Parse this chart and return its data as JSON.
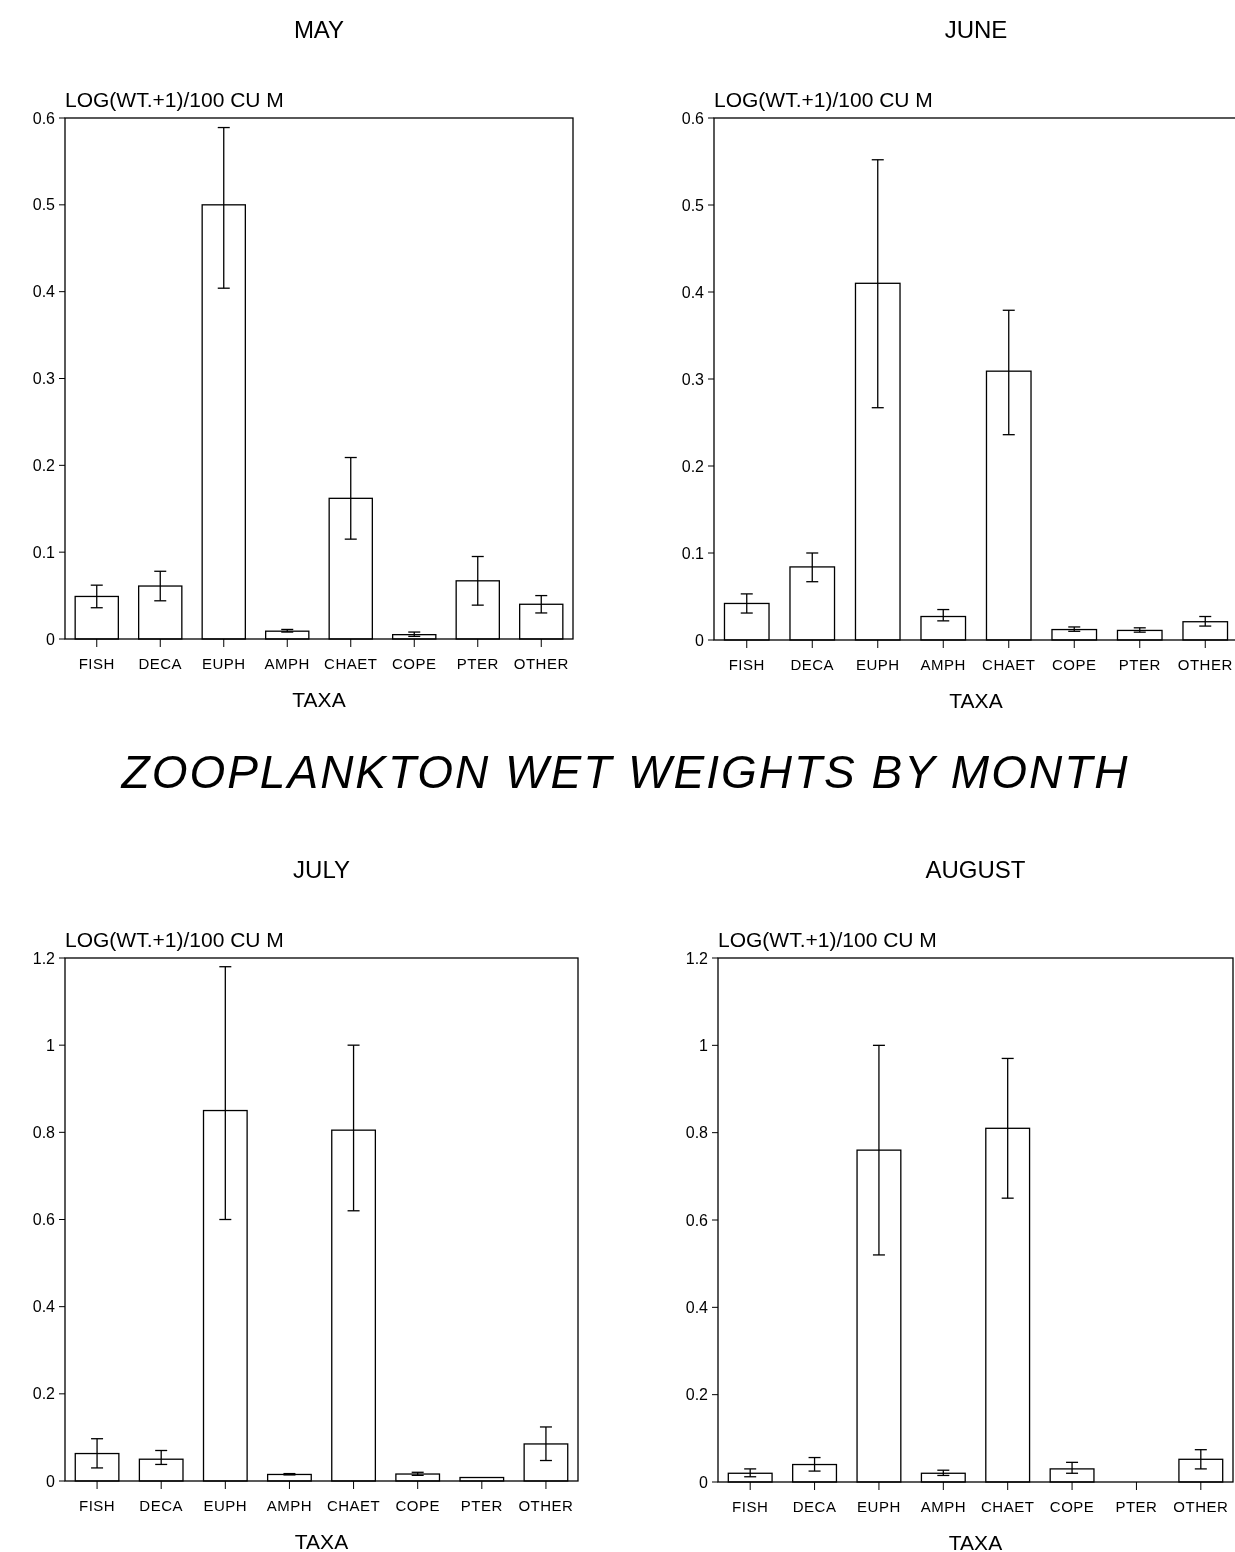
{
  "chart_data": [
    {
      "type": "bar",
      "title": "MAY",
      "ylabel": "LOG(WT.+1)/100 CU M",
      "xlabel": "TAXA",
      "annotations": [
        "ZOOPLANKTON WET WEIGHTS BY MONTH"
      ],
      "categories": [
        "FISH",
        "DECA",
        "EUPH",
        "AMPH",
        "CHAET",
        "COPE",
        "PTER",
        "OTHER"
      ],
      "color": "#ffffff",
      "grid": false,
      "ylim": [
        0,
        0.6
      ],
      "yticks": [
        0,
        0.1,
        0.2,
        0.3,
        0.4,
        0.5,
        0.6
      ],
      "values": [
        0.049,
        0.061,
        0.5,
        0.009,
        0.162,
        0.005,
        0.067,
        0.04
      ],
      "errors": [
        [
          0.036,
          0.062
        ],
        [
          0.044,
          0.078
        ],
        [
          0.404,
          0.589
        ],
        [
          0.008,
          0.011
        ],
        [
          0.115,
          0.209
        ],
        [
          0.003,
          0.008
        ],
        [
          0.039,
          0.095
        ],
        [
          0.03,
          0.05
        ]
      ]
    },
    {
      "type": "bar",
      "title": "JUNE",
      "ylabel": "LOG(WT.+1)/100 CU M",
      "xlabel": "TAXA",
      "categories": [
        "FISH",
        "DECA",
        "EUPH",
        "AMPH",
        "CHAET",
        "COPE",
        "PTER",
        "OTHER"
      ],
      "color": "#ffffff",
      "grid": false,
      "ylim": [
        0,
        0.6
      ],
      "yticks": [
        0,
        0.1,
        0.2,
        0.3,
        0.4,
        0.5,
        0.6
      ],
      "values": [
        0.042,
        0.084,
        0.41,
        0.027,
        0.309,
        0.012,
        0.011,
        0.021
      ],
      "errors": [
        [
          0.031,
          0.053
        ],
        [
          0.067,
          0.1
        ],
        [
          0.267,
          0.552
        ],
        [
          0.022,
          0.035
        ],
        [
          0.236,
          0.379
        ],
        [
          0.01,
          0.015
        ],
        [
          0.009,
          0.014
        ],
        [
          0.016,
          0.027
        ]
      ]
    },
    {
      "type": "bar",
      "title": "JULY",
      "ylabel": "LOG(WT.+1)/100 CU M",
      "xlabel": "TAXA",
      "categories": [
        "FISH",
        "DECA",
        "EUPH",
        "AMPH",
        "CHAET",
        "COPE",
        "PTER",
        "OTHER"
      ],
      "color": "#ffffff",
      "grid": false,
      "ylim": [
        0,
        1.2
      ],
      "yticks": [
        0,
        0.2,
        0.4,
        0.6,
        0.8,
        1,
        1.2
      ],
      "values": [
        0.063,
        0.05,
        0.85,
        0.015,
        0.805,
        0.016,
        0.008,
        0.085
      ],
      "errors": [
        [
          0.03,
          0.097
        ],
        [
          0.038,
          0.07
        ],
        [
          0.6,
          1.18
        ],
        [
          0.014,
          0.017
        ],
        [
          0.62,
          1.0
        ],
        [
          0.013,
          0.02
        ],
        null,
        [
          0.047,
          0.124
        ]
      ]
    },
    {
      "type": "bar",
      "title": "AUGUST",
      "ylabel": "LOG(WT.+1)/100 CU M",
      "xlabel": "TAXA",
      "categories": [
        "FISH",
        "DECA",
        "EUPH",
        "AMPH",
        "CHAET",
        "COPE",
        "PTER",
        "OTHER"
      ],
      "color": "#ffffff",
      "grid": false,
      "ylim": [
        0,
        1.2
      ],
      "yticks": [
        0,
        0.2,
        0.4,
        0.6,
        0.8,
        1,
        1.2
      ],
      "values": [
        0.02,
        0.04,
        0.76,
        0.02,
        0.81,
        0.03,
        0,
        0.052
      ],
      "errors": [
        [
          0.012,
          0.03
        ],
        [
          0.025,
          0.056
        ],
        [
          0.52,
          1.0
        ],
        [
          0.015,
          0.027
        ],
        [
          0.65,
          0.97
        ],
        [
          0.02,
          0.045
        ],
        null,
        [
          0.03,
          0.074
        ]
      ]
    }
  ]
}
